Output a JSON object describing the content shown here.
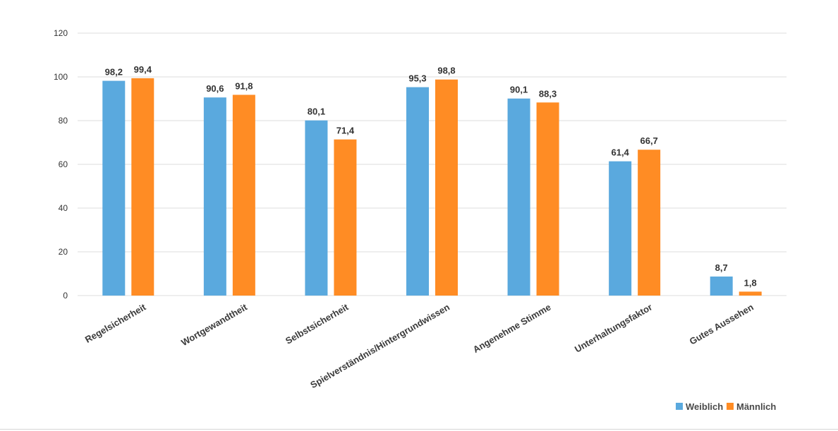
{
  "chart_data": {
    "type": "bar",
    "categories": [
      "Regelsicherheit",
      "Wortgewandtheit",
      "Selbstsicherheit",
      "Spielverständnis/Hintergrundwissen",
      "Angenehme Stimme",
      "Unterhaltungsfaktor",
      "Gutes Aussehen"
    ],
    "series": [
      {
        "name": "Weiblich",
        "values": [
          98.2,
          90.6,
          80.1,
          95.3,
          90.1,
          61.4,
          8.7
        ],
        "labels": [
          "98,2",
          "90,6",
          "80,1",
          "95,3",
          "90,1",
          "61,4",
          "8,7"
        ],
        "color": "#5aa9de"
      },
      {
        "name": "Männlich",
        "values": [
          99.4,
          91.8,
          71.4,
          98.8,
          88.3,
          66.7,
          1.8
        ],
        "labels": [
          "99,4",
          "91,8",
          "71,4",
          "98,8",
          "88,3",
          "66,7",
          "1,8"
        ],
        "color": "#ff8c24"
      }
    ],
    "yticks": [
      "0",
      "20",
      "40",
      "60",
      "80",
      "100",
      "120"
    ],
    "ylim": [
      0,
      120
    ],
    "grid": true,
    "legend_position": "bottom-right",
    "title": "",
    "xlabel": "",
    "ylabel": ""
  }
}
